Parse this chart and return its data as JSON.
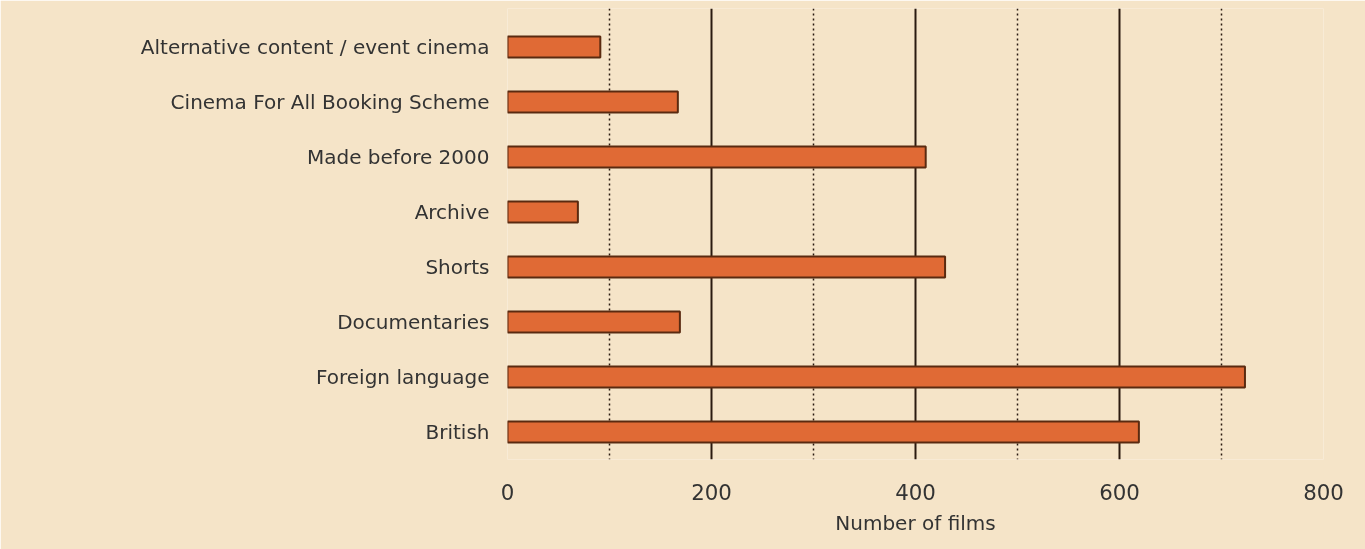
{
  "chart_data": {
    "type": "bar",
    "orientation": "horizontal",
    "xlabel": "Number of films",
    "categories": [
      "Alternative content / event cinema",
      "Cinema For All Booking Scheme",
      "Made before 2000",
      "Archive",
      "Shorts",
      "Documentaries",
      "Foreign language",
      "British"
    ],
    "values": [
      91,
      167,
      410,
      69,
      429,
      169,
      723,
      619
    ],
    "color": "#e06a35",
    "xlim": [
      0,
      800
    ],
    "xticks": [
      0,
      200,
      400,
      600,
      800
    ],
    "grid": "x"
  }
}
